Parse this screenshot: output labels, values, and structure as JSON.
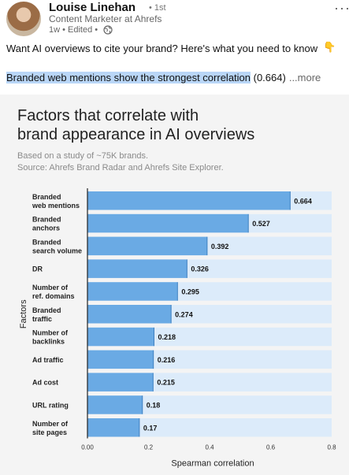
{
  "post": {
    "author": "Louise Linehan",
    "degree": "• 1st",
    "headline": "Content Marketer at Ahrefs",
    "meta": "1w • Edited •",
    "more": "···",
    "text": "Want AI overviews to cite your brand? Here's what you need to know",
    "emoji": "👇",
    "highlighted": "Branded web mentions show the strongest correlation",
    "after_highlight": " (0.664)",
    "see_more": "...more"
  },
  "card": {
    "title_line1": "Factors that correlate with",
    "title_line2": "brand appearance in AI overviews",
    "sub_line1": "Based on a study of ~75K brands.",
    "sub_line2": "Source: Ahrefs Brand Radar and Ahrefs Site Explorer."
  },
  "colors": {
    "bar": "#6aaae4",
    "track": "#dcebfa",
    "highlight": "#b9d6f7"
  },
  "chart_data": {
    "type": "bar",
    "orientation": "horizontal",
    "categories": [
      [
        "Branded",
        "web mentions"
      ],
      [
        "Branded",
        "anchors"
      ],
      [
        "Branded",
        "search volume"
      ],
      [
        "DR"
      ],
      [
        "Number of",
        "ref. domains"
      ],
      [
        "Branded",
        "traffic"
      ],
      [
        "Number of",
        "backlinks"
      ],
      [
        "Ad traffic"
      ],
      [
        "Ad cost"
      ],
      [
        "URL rating"
      ],
      [
        "Number of",
        "site pages"
      ]
    ],
    "values": [
      0.664,
      0.527,
      0.392,
      0.326,
      0.295,
      0.274,
      0.218,
      0.216,
      0.215,
      0.18,
      0.17
    ],
    "value_labels": [
      "0.664",
      "0.527",
      "0.392",
      "0.326",
      "0.295",
      "0.274",
      "0.218",
      "0.216",
      "0.215",
      "0.18",
      "0.17"
    ],
    "xlabel": "Spearman correlation",
    "ylabel": "Factors",
    "xlim": [
      0,
      0.8
    ],
    "xticks": [
      "0.00",
      "0.2",
      "0.4",
      "0.6",
      "0.8"
    ],
    "grid": false
  }
}
